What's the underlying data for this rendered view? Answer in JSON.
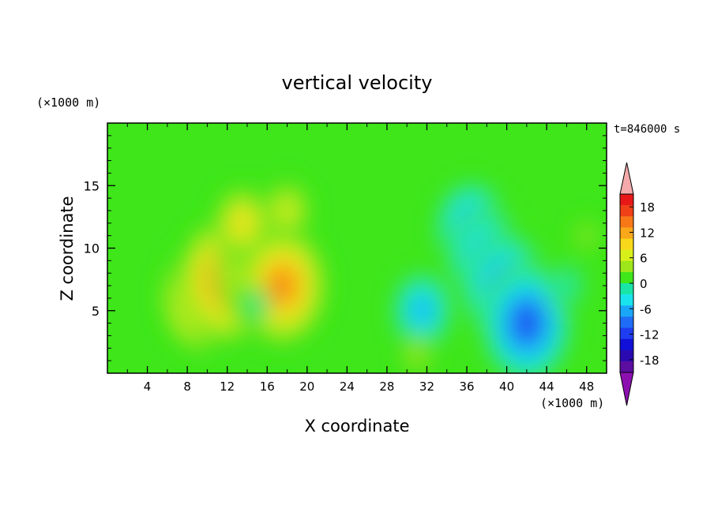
{
  "chart_data": {
    "type": "heatmap",
    "title": "vertical velocity",
    "time_label": "t=846000 s",
    "xlabel": "X coordinate",
    "ylabel": "Z coordinate",
    "x_unit": "(×1000 m)",
    "y_unit": "(×1000 m)",
    "xlim": [
      0,
      50
    ],
    "ylim": [
      0,
      20
    ],
    "x_ticks": [
      4,
      8,
      12,
      16,
      20,
      24,
      28,
      32,
      36,
      40,
      44,
      48
    ],
    "y_ticks": [
      5,
      10,
      15
    ],
    "colorbar": {
      "levels": [
        -21,
        -18,
        -15,
        -12,
        -9,
        -6,
        -3,
        0,
        3,
        6,
        9,
        12,
        15,
        18,
        21
      ],
      "tick_labels": [
        "18",
        "12",
        "6",
        "0",
        "-6",
        "-12",
        "-18"
      ],
      "tick_values": [
        18,
        12,
        6,
        0,
        -6,
        -12,
        -18
      ],
      "colors": [
        "#5b0ea0",
        "#2a0ab0",
        "#1010d8",
        "#1e3cf0",
        "#1f6cf6",
        "#1aa6f8",
        "#19e4ee",
        "#19e6a6",
        "#3ee61a",
        "#9ee61a",
        "#d8f01a",
        "#f8d81a",
        "#f8a818",
        "#f87818",
        "#f04018",
        "#e81818"
      ],
      "over_color": "#f4aaaa",
      "under_color": "#8c10b0"
    },
    "field_features": [
      {
        "x": 9.5,
        "z": 6.0,
        "w": 14
      },
      {
        "x": 12.0,
        "z": 7.5,
        "w": 17
      },
      {
        "x": 14.5,
        "z": 8.0,
        "w": 12
      },
      {
        "x": 17.5,
        "z": 7.0,
        "w": 16
      },
      {
        "x": 13.5,
        "z": 12.0,
        "w": 8
      },
      {
        "x": 18.0,
        "z": 13.0,
        "w": 6
      },
      {
        "x": 15.0,
        "z": 5.5,
        "w": -1
      },
      {
        "x": 36.5,
        "z": 11.5,
        "w": -12
      },
      {
        "x": 38.0,
        "z": 9.0,
        "w": -13
      },
      {
        "x": 40.0,
        "z": 6.5,
        "w": -15
      },
      {
        "x": 42.0,
        "z": 4.0,
        "w": -16
      },
      {
        "x": 31.5,
        "z": 5.0,
        "w": -9
      },
      {
        "x": 31.0,
        "z": 1.5,
        "w": 3
      },
      {
        "x": 46.0,
        "z": 7.0,
        "w": -4
      },
      {
        "x": 48.0,
        "z": 11.0,
        "w": 1
      }
    ]
  }
}
